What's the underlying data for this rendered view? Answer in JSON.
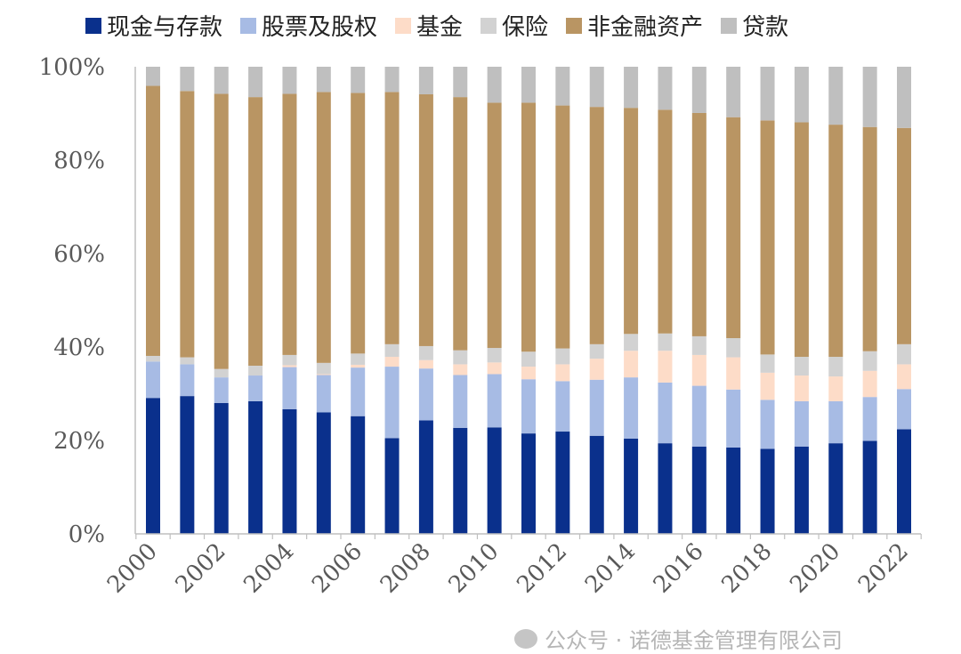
{
  "chart_data": {
    "type": "bar",
    "stacked": true,
    "percent": true,
    "categories": [
      "2000",
      "2001",
      "2002",
      "2003",
      "2004",
      "2005",
      "2006",
      "2007",
      "2008",
      "2009",
      "2010",
      "2011",
      "2012",
      "2013",
      "2014",
      "2015",
      "2016",
      "2017",
      "2018",
      "2019",
      "2020",
      "2021",
      "2022"
    ],
    "x_tick_labels": [
      "2000",
      "2002",
      "2004",
      "2006",
      "2008",
      "2010",
      "2012",
      "2014",
      "2016",
      "2018",
      "2020",
      "2022"
    ],
    "y_tick_labels": [
      "0%",
      "20%",
      "40%",
      "60%",
      "80%",
      "100%"
    ],
    "ylim": [
      0,
      100
    ],
    "grid": false,
    "legend_position": "top",
    "series": [
      {
        "name": "现金与存款",
        "color": "#0a308c",
        "values": [
          29.1,
          29.5,
          28.0,
          28.4,
          26.7,
          26.0,
          25.2,
          20.5,
          24.3,
          22.7,
          22.8,
          21.5,
          21.9,
          21.0,
          20.4,
          19.4,
          18.7,
          18.5,
          18.2,
          18.7,
          19.4,
          19.9,
          22.4
        ]
      },
      {
        "name": "股票及股权",
        "color": "#a7bbe4",
        "values": [
          7.8,
          6.8,
          5.5,
          5.5,
          9.0,
          8.0,
          10.4,
          15.3,
          11.1,
          11.3,
          11.4,
          11.6,
          10.8,
          12.0,
          13.1,
          13.0,
          13.0,
          12.4,
          10.5,
          9.7,
          9.0,
          9.4,
          8.6
        ]
      },
      {
        "name": "基金",
        "color": "#fddcc8",
        "values": [
          0.0,
          0.0,
          0.0,
          0.0,
          0.4,
          0.2,
          0.6,
          2.1,
          1.8,
          2.3,
          2.5,
          2.7,
          3.6,
          4.5,
          5.7,
          6.8,
          6.6,
          6.9,
          5.8,
          5.5,
          5.3,
          5.6,
          5.3
        ]
      },
      {
        "name": "保险",
        "color": "#d2d2d2",
        "values": [
          1.2,
          1.5,
          1.8,
          2.1,
          2.2,
          2.4,
          2.4,
          2.7,
          3.0,
          3.0,
          3.1,
          3.2,
          3.4,
          3.1,
          3.6,
          3.7,
          4.0,
          4.1,
          3.9,
          4.0,
          4.2,
          4.2,
          4.3
        ]
      },
      {
        "name": "非金融资产",
        "color": "#b99563",
        "values": [
          57.8,
          57.0,
          58.9,
          57.5,
          55.9,
          58.0,
          55.8,
          54.0,
          53.9,
          54.2,
          52.5,
          53.3,
          52.0,
          50.8,
          48.4,
          47.9,
          47.8,
          47.3,
          50.1,
          50.2,
          49.7,
          48.0,
          46.3
        ]
      },
      {
        "name": "贷款",
        "color": "#bfbfbf",
        "values": [
          4.1,
          5.2,
          5.8,
          6.5,
          5.8,
          5.4,
          5.6,
          5.4,
          5.9,
          6.5,
          7.7,
          7.7,
          8.3,
          8.6,
          8.8,
          9.2,
          9.9,
          10.8,
          11.5,
          11.9,
          12.4,
          12.9,
          13.1
        ]
      }
    ]
  },
  "watermark": {
    "text": "公众号 · 诺德基金管理有限公司"
  }
}
